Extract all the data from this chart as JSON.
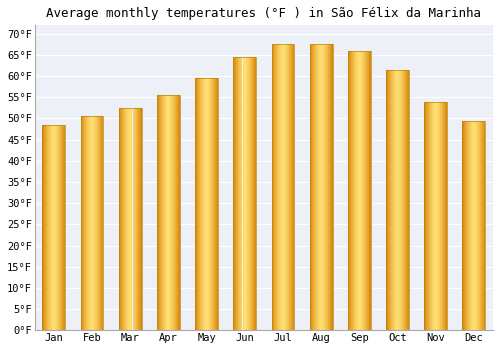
{
  "title": "Average monthly temperatures (°F ) in São Félix da Marinha",
  "months": [
    "Jan",
    "Feb",
    "Mar",
    "Apr",
    "May",
    "Jun",
    "Jul",
    "Aug",
    "Sep",
    "Oct",
    "Nov",
    "Dec"
  ],
  "values": [
    48.5,
    50.5,
    52.5,
    55.5,
    59.5,
    64.5,
    67.5,
    67.5,
    66.0,
    61.5,
    54.0,
    49.5
  ],
  "ylim": [
    0,
    72
  ],
  "yticks": [
    0,
    5,
    10,
    15,
    20,
    25,
    30,
    35,
    40,
    45,
    50,
    55,
    60,
    65,
    70
  ],
  "ytick_labels": [
    "0°F",
    "5°F",
    "10°F",
    "15°F",
    "20°F",
    "25°F",
    "30°F",
    "35°F",
    "40°F",
    "45°F",
    "50°F",
    "55°F",
    "60°F",
    "65°F",
    "70°F"
  ],
  "bg_color": "#ffffff",
  "plot_bg_color": "#eef0f8",
  "grid_color": "#ffffff",
  "bar_color_center": "#FFD966",
  "bar_color_edge": "#E08000",
  "bar_outline_color": "#B8860B",
  "title_fontsize": 9,
  "tick_fontsize": 7.5,
  "font_family": "monospace",
  "bar_width": 0.6
}
